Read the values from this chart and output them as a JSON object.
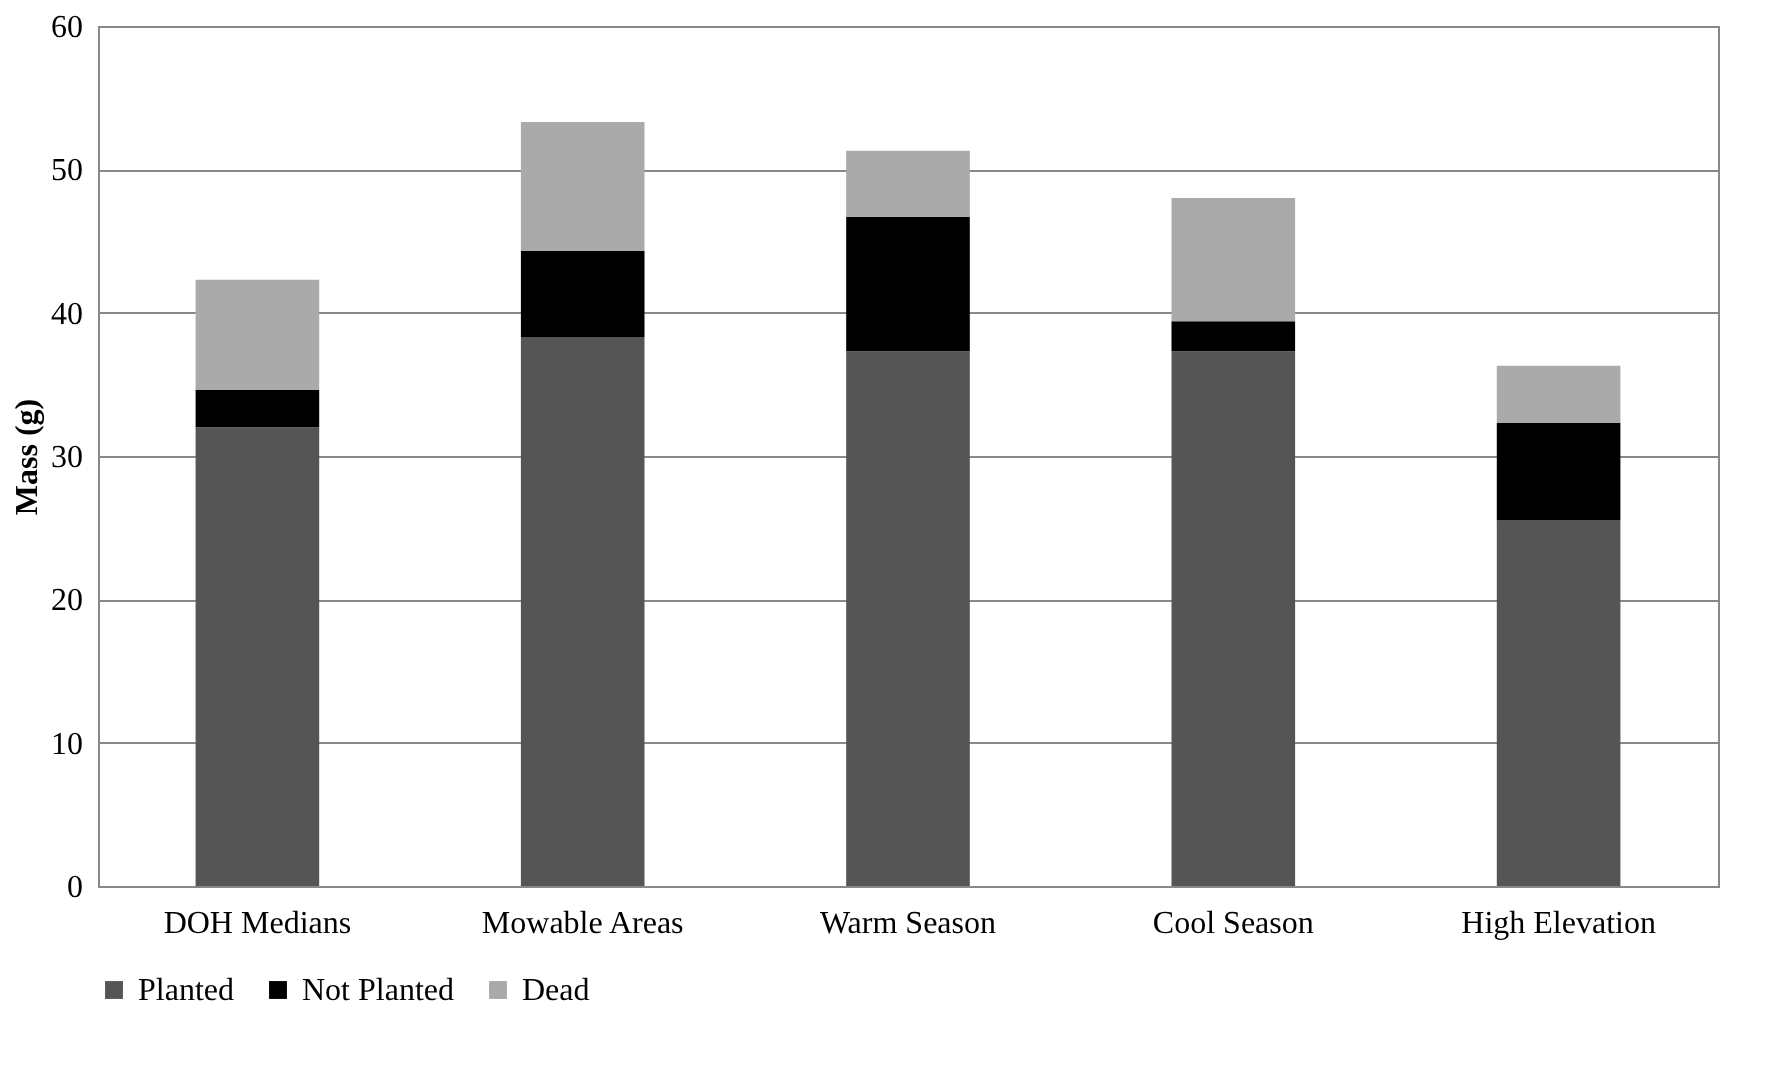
{
  "chart_data": {
    "type": "bar",
    "stacked": true,
    "ylabel": "Mass (g)",
    "categories": [
      "DOH Medians",
      "Mowable Areas",
      "Warm Season",
      "Cool Season",
      "High Elevation"
    ],
    "series": [
      {
        "name": "Planted",
        "color": "#555555",
        "values": [
          32,
          38.3,
          37.3,
          37.3,
          25.5
        ]
      },
      {
        "name": "Not Planted",
        "color": "#000000",
        "values": [
          2.6,
          6,
          9.4,
          2.1,
          6.8
        ]
      },
      {
        "name": "Dead",
        "color": "#aaaaaa",
        "values": [
          7.7,
          9,
          4.6,
          8.6,
          4
        ]
      }
    ],
    "ylim": [
      0,
      60
    ],
    "yticks": [
      0,
      10,
      20,
      30,
      40,
      50,
      60
    ],
    "grid": "y",
    "legend": "bottom"
  }
}
